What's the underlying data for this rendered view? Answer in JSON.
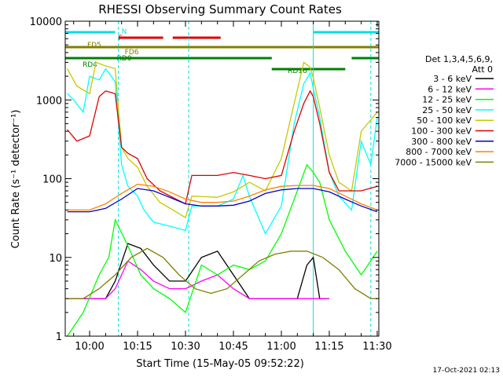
{
  "chart_data": {
    "type": "line",
    "title": "RHESSI Observing Summary Count Rates",
    "xlabel": "Start Time (15-May-05 09:52:22)",
    "ylabel": "Count Rate (s⁻¹ detector⁻¹)",
    "y_scale": "log",
    "ylim": [
      1,
      10000
    ],
    "xlim": [
      "09:52:22",
      "11:30:30"
    ],
    "x_ticks": [
      "10:00",
      "10:15",
      "10:30",
      "10:45",
      "11:00",
      "11:15",
      "11:30"
    ],
    "y_ticks": [
      "1",
      "10",
      "100",
      "1000",
      "10000"
    ],
    "grid": false,
    "legend_position": "right",
    "legend_title_lines": [
      "Det 1,3,4,5,6,9,",
      "Att 0"
    ],
    "timestamp": "17-Oct-2021 02:13",
    "series": [
      {
        "name": "3 - 6 keV",
        "color": "#000000",
        "x": [
          "09:53",
          "10:00",
          "10:05",
          "10:08",
          "10:12",
          "10:16",
          "10:20",
          "10:25",
          "10:30",
          "10:35",
          "10:40",
          "10:45",
          "10:50",
          "10:55",
          "11:00",
          "11:05",
          "11:08",
          "11:10",
          "11:12",
          "11:15"
        ],
        "values": [
          3,
          3,
          3,
          5,
          15,
          13,
          8,
          5,
          5,
          10,
          12,
          6,
          3,
          3,
          3,
          3,
          8,
          10,
          3,
          3
        ]
      },
      {
        "name": "6 - 12 keV",
        "color": "#ff00ff",
        "x": [
          "09:53",
          "10:05",
          "10:08",
          "10:12",
          "10:16",
          "10:20",
          "10:25",
          "10:30",
          "10:35",
          "10:40",
          "10:45",
          "10:50",
          "11:00",
          "11:08",
          "11:12",
          "11:15"
        ],
        "values": [
          3,
          3,
          4,
          9,
          7,
          5,
          4,
          4,
          5,
          6,
          4,
          3,
          3,
          3,
          3,
          3
        ]
      },
      {
        "name": "12 - 25 keV",
        "color": "#00ff00",
        "x": [
          "09:53",
          "09:58",
          "10:03",
          "10:06",
          "10:08",
          "10:12",
          "10:16",
          "10:20",
          "10:25",
          "10:30",
          "10:35",
          "10:40",
          "10:45",
          "10:50",
          "10:55",
          "11:00",
          "11:05",
          "11:08",
          "11:10",
          "11:12",
          "11:15",
          "11:20",
          "11:25",
          "11:30"
        ],
        "values": [
          1,
          2,
          6,
          10,
          30,
          14,
          6,
          4,
          3,
          2,
          8,
          6,
          8,
          7,
          9,
          20,
          70,
          150,
          120,
          90,
          30,
          12,
          6,
          12
        ]
      },
      {
        "name": "25 - 50 keV",
        "color": "#00ffff",
        "x": [
          "09:53",
          "09:55",
          "09:58",
          "10:00",
          "10:03",
          "10:05",
          "10:08",
          "10:10",
          "10:12",
          "10:15",
          "10:17",
          "10:20",
          "10:25",
          "10:30",
          "10:32",
          "10:40",
          "10:45",
          "10:48",
          "10:50",
          "10:55",
          "11:00",
          "11:04",
          "11:07",
          "11:09",
          "11:10",
          "11:12",
          "11:15",
          "11:18",
          "11:22",
          "11:25",
          "11:28",
          "11:30"
        ],
        "values": [
          1200,
          1000,
          700,
          2000,
          1800,
          2500,
          1700,
          150,
          80,
          60,
          40,
          28,
          25,
          22,
          45,
          45,
          55,
          110,
          60,
          20,
          45,
          500,
          1600,
          2200,
          1400,
          600,
          120,
          60,
          40,
          300,
          150,
          600
        ]
      },
      {
        "name": "50 - 100 keV",
        "color": "#c8c800",
        "x": [
          "09:53",
          "09:56",
          "10:00",
          "10:02",
          "10:05",
          "10:08",
          "10:10",
          "10:12",
          "10:15",
          "10:18",
          "10:22",
          "10:27",
          "10:30",
          "10:32",
          "10:40",
          "10:45",
          "10:50",
          "10:55",
          "11:00",
          "11:04",
          "11:07",
          "11:09",
          "11:10",
          "11:12",
          "11:15",
          "11:18",
          "11:22",
          "11:25",
          "11:30"
        ],
        "values": [
          2500,
          1500,
          1200,
          3000,
          2700,
          2500,
          250,
          180,
          140,
          80,
          50,
          38,
          32,
          60,
          58,
          68,
          90,
          70,
          180,
          900,
          3000,
          2600,
          1900,
          800,
          200,
          90,
          70,
          400,
          700
        ]
      },
      {
        "name": "100 - 300 keV",
        "color": "#dd0000",
        "x": [
          "09:53",
          "09:56",
          "10:00",
          "10:03",
          "10:05",
          "10:08",
          "10:10",
          "10:12",
          "10:15",
          "10:18",
          "10:22",
          "10:27",
          "10:30",
          "10:32",
          "10:40",
          "10:45",
          "10:50",
          "10:55",
          "11:00",
          "11:04",
          "11:07",
          "11:09",
          "11:10",
          "11:12",
          "11:15",
          "11:18",
          "11:22",
          "11:25",
          "11:30"
        ],
        "values": [
          420,
          300,
          350,
          1100,
          1300,
          1200,
          250,
          210,
          180,
          100,
          70,
          55,
          48,
          110,
          110,
          120,
          110,
          100,
          110,
          400,
          900,
          1300,
          1100,
          500,
          120,
          70,
          70,
          70,
          80
        ]
      },
      {
        "name": "300 - 800 keV",
        "color": "#0000cc",
        "x": [
          "09:53",
          "10:00",
          "10:05",
          "10:10",
          "10:15",
          "10:20",
          "10:25",
          "10:30",
          "10:35",
          "10:40",
          "10:45",
          "10:50",
          "10:55",
          "11:00",
          "11:05",
          "11:10",
          "11:15",
          "11:20",
          "11:25",
          "11:30"
        ],
        "values": [
          38,
          38,
          42,
          55,
          75,
          70,
          58,
          48,
          45,
          45,
          46,
          52,
          65,
          72,
          75,
          75,
          68,
          55,
          45,
          38
        ]
      },
      {
        "name": "800 - 7000 keV",
        "color": "#ff8000",
        "x": [
          "09:53",
          "10:00",
          "10:05",
          "10:10",
          "10:15",
          "10:20",
          "10:25",
          "10:30",
          "10:35",
          "10:40",
          "10:45",
          "10:50",
          "10:55",
          "11:00",
          "11:05",
          "11:10",
          "11:15",
          "11:20",
          "11:25",
          "11:30"
        ],
        "values": [
          40,
          40,
          48,
          65,
          85,
          80,
          68,
          55,
          50,
          50,
          52,
          60,
          72,
          80,
          82,
          82,
          75,
          60,
          48,
          40
        ]
      },
      {
        "name": "7000 - 15000 keV",
        "color": "#808000",
        "x": [
          "09:53",
          "09:58",
          "10:03",
          "10:08",
          "10:13",
          "10:18",
          "10:23",
          "10:28",
          "10:33",
          "10:38",
          "10:43",
          "10:48",
          "10:53",
          "10:58",
          "11:03",
          "11:08",
          "11:13",
          "11:18",
          "11:23",
          "11:28",
          "11:30"
        ],
        "values": [
          3,
          3,
          4,
          6,
          10,
          13,
          10,
          6,
          4,
          3.5,
          4,
          6,
          9,
          11,
          12,
          12,
          10,
          7,
          4,
          3,
          3
        ]
      }
    ],
    "mode_bars": [
      {
        "label": "N",
        "color": "#00e0e0",
        "segments": [
          [
            "09:52:22",
            "10:08"
          ],
          [
            "11:10",
            "11:30:30"
          ]
        ]
      },
      {
        "label": "F",
        "color": "#dd0000",
        "segments": [
          [
            "10:09",
            "10:23"
          ],
          [
            "10:26",
            "10:41"
          ]
        ]
      },
      {
        "label": "FD5",
        "color": "#808000",
        "segments": [
          [
            "09:52:22",
            "10:06"
          ]
        ]
      },
      {
        "label": "FD6",
        "color": "#808000",
        "segments": [
          [
            "10:06",
            "11:30:30"
          ]
        ]
      },
      {
        "label": "RD0",
        "color": "#008000",
        "segments": [
          [
            "09:52:22",
            "10:07"
          ],
          [
            "10:31",
            "10:57"
          ],
          [
            "11:22",
            "11:30:30"
          ]
        ]
      },
      {
        "label": "RD4",
        "color": "#008000",
        "segments": [
          [
            "10:07",
            "10:31"
          ]
        ]
      },
      {
        "label": "RD16",
        "color": "#008000",
        "segments": [
          [
            "10:57",
            "11:20"
          ]
        ]
      }
    ],
    "vertical_markers": [
      {
        "time": "10:09",
        "color": "#00e0e0",
        "style": "dashed"
      },
      {
        "time": "10:31",
        "color": "#00e0e0",
        "style": "dashed"
      },
      {
        "time": "11:10",
        "color": "#00e0e0",
        "style": "solid"
      },
      {
        "time": "11:28",
        "color": "#00e0e0",
        "style": "dashed"
      }
    ]
  }
}
